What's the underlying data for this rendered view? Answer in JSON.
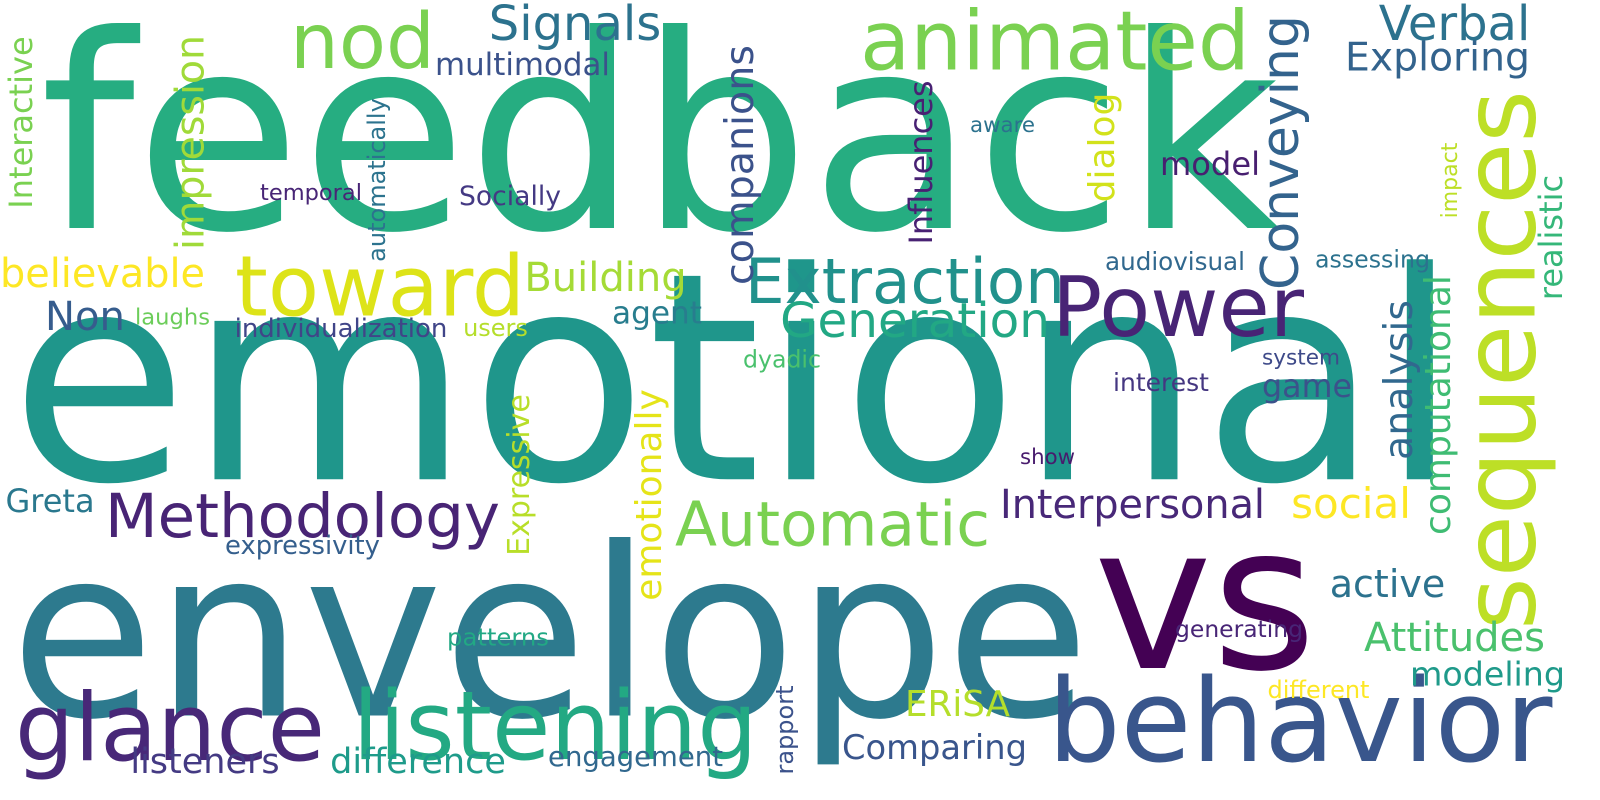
{
  "words": [
    {
      "text": "feedback",
      "color": "#26ad81",
      "rotated": false
    },
    {
      "text": "emotional",
      "color": "#1f968b",
      "rotated": false
    },
    {
      "text": "envelope",
      "color": "#2d7a8e",
      "rotated": false
    },
    {
      "text": "vs",
      "color": "#440154",
      "rotated": false
    },
    {
      "text": "behavior",
      "color": "#39568c",
      "rotated": false
    },
    {
      "text": "listening",
      "color": "#23a983",
      "rotated": false
    },
    {
      "text": "glance",
      "color": "#482878",
      "rotated": false
    },
    {
      "text": "sequences",
      "color": "#bddf26",
      "rotated": true
    },
    {
      "text": "toward",
      "color": "#dde318",
      "rotated": false
    },
    {
      "text": "Power",
      "color": "#482475",
      "rotated": false
    },
    {
      "text": "animated",
      "color": "#7ad151",
      "rotated": false
    },
    {
      "text": "nod",
      "color": "#7ad151",
      "rotated": false
    },
    {
      "text": "Methodology",
      "color": "#482475",
      "rotated": false
    },
    {
      "text": "Automatic",
      "color": "#7ad151",
      "rotated": false
    },
    {
      "text": "Extraction",
      "color": "#21918c",
      "rotated": false
    },
    {
      "text": "Generation",
      "color": "#22a884",
      "rotated": false
    },
    {
      "text": "Signals",
      "color": "#2c728e",
      "rotated": false
    },
    {
      "text": "Verbal",
      "color": "#2c728e",
      "rotated": false
    },
    {
      "text": "Exploring",
      "color": "#33638d",
      "rotated": false
    },
    {
      "text": "Conveying",
      "color": "#33638d",
      "rotated": true
    },
    {
      "text": "Interpersonal",
      "color": "#482878",
      "rotated": false
    },
    {
      "text": "Non",
      "color": "#365c8d",
      "rotated": false
    },
    {
      "text": "believable",
      "color": "#fde725",
      "rotated": false
    },
    {
      "text": "Building",
      "color": "#a5db36",
      "rotated": false
    },
    {
      "text": "companions",
      "color": "#3b528b",
      "rotated": true
    },
    {
      "text": "impression",
      "color": "#a0da39",
      "rotated": true
    },
    {
      "text": "Interactive",
      "color": "#7ad151",
      "rotated": true
    },
    {
      "text": "Influences",
      "color": "#482173",
      "rotated": true
    },
    {
      "text": "dialog",
      "color": "#d2e21b",
      "rotated": true
    },
    {
      "text": "model",
      "color": "#481f70",
      "rotated": false
    },
    {
      "text": "multimodal",
      "color": "#3b528b",
      "rotated": false
    },
    {
      "text": "realistic",
      "color": "#35b779",
      "rotated": true
    },
    {
      "text": "analysis",
      "color": "#31688e",
      "rotated": true
    },
    {
      "text": "computational",
      "color": "#3fbc73",
      "rotated": true
    },
    {
      "text": "game",
      "color": "#3b528b",
      "rotated": false
    },
    {
      "text": "social",
      "color": "#fde725",
      "rotated": false
    },
    {
      "text": "active",
      "color": "#2c728e",
      "rotated": false
    },
    {
      "text": "Attitudes",
      "color": "#4ac16d",
      "rotated": false
    },
    {
      "text": "modeling",
      "color": "#1f9a8a",
      "rotated": false
    },
    {
      "text": "Comparing",
      "color": "#39558c",
      "rotated": false
    },
    {
      "text": "ERiSA",
      "color": "#b5de2b",
      "rotated": false
    },
    {
      "text": "listeners",
      "color": "#443a83",
      "rotated": false
    },
    {
      "text": "difference",
      "color": "#1e9b8a",
      "rotated": false
    },
    {
      "text": "engagement",
      "color": "#31688e",
      "rotated": false
    },
    {
      "text": "emotionally",
      "color": "#e5e419",
      "rotated": true
    },
    {
      "text": "Expressive",
      "color": "#b8de29",
      "rotated": true
    },
    {
      "text": "agent",
      "color": "#287d8e",
      "rotated": false
    },
    {
      "text": "Greta",
      "color": "#2a788e",
      "rotated": false
    },
    {
      "text": "expressivity",
      "color": "#355f8d",
      "rotated": false
    },
    {
      "text": "individualization",
      "color": "#404588",
      "rotated": false
    },
    {
      "text": "users",
      "color": "#b5de2b",
      "rotated": false
    },
    {
      "text": "laughs",
      "color": "#6ccd5a",
      "rotated": false
    },
    {
      "text": "temporal",
      "color": "#482576",
      "rotated": false
    },
    {
      "text": "Socially",
      "color": "#443983",
      "rotated": false
    },
    {
      "text": "automatically",
      "color": "#2c738e",
      "rotated": true
    },
    {
      "text": "aware",
      "color": "#2c728e",
      "rotated": false
    },
    {
      "text": "audiovisual",
      "color": "#31688e",
      "rotated": false
    },
    {
      "text": "assessing",
      "color": "#2c728e",
      "rotated": false
    },
    {
      "text": "impact",
      "color": "#bddf26",
      "rotated": true
    },
    {
      "text": "system",
      "color": "#3e4a89",
      "rotated": false
    },
    {
      "text": "interest",
      "color": "#453781",
      "rotated": false
    },
    {
      "text": "dyadic",
      "color": "#4ac16d",
      "rotated": false
    },
    {
      "text": "show",
      "color": "#481b6d",
      "rotated": false
    },
    {
      "text": "generating",
      "color": "#482576",
      "rotated": false
    },
    {
      "text": "patterns",
      "color": "#22a884",
      "rotated": false
    },
    {
      "text": "different",
      "color": "#fde725",
      "rotated": false
    },
    {
      "text": "rapport",
      "color": "#3b528b",
      "rotated": true
    }
  ]
}
